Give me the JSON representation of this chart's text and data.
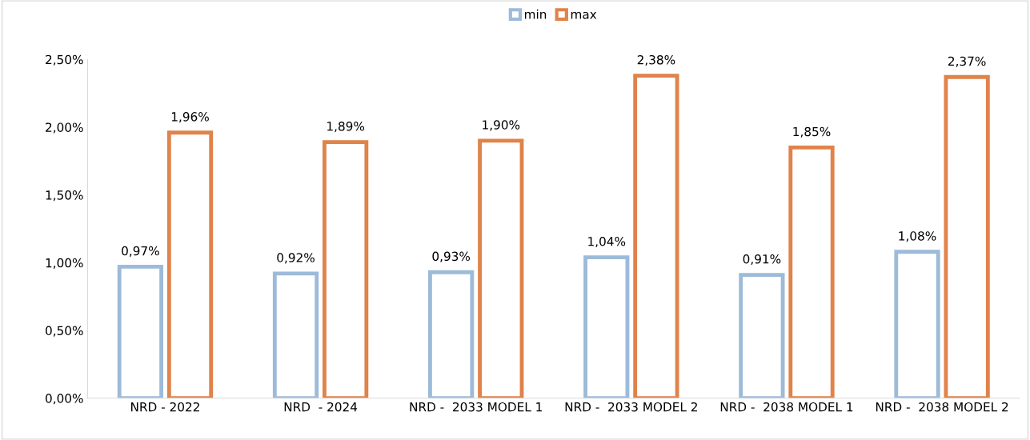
{
  "chart_data": {
    "type": "bar",
    "categories": [
      "NRD - 2022",
      "NRD  - 2024",
      "NRD -  2033 MODEL 1",
      "NRD -  2033 MODEL 2",
      "NRD -  2038 MODEL 1",
      "NRD -  2038 MODEL 2"
    ],
    "series": [
      {
        "name": "min",
        "color": "#9dbbd9",
        "values": [
          0.97,
          0.92,
          0.93,
          1.04,
          0.91,
          1.08
        ],
        "value_labels": [
          "0,97%",
          "0,92%",
          "0,93%",
          "1,04%",
          "0,91%",
          "1,08%"
        ]
      },
      {
        "name": "max",
        "color": "#e0834a",
        "values": [
          1.96,
          1.89,
          1.9,
          2.38,
          1.85,
          2.37
        ],
        "value_labels": [
          "1,96%",
          "1,89%",
          "1,90%",
          "2,38%",
          "1,85%",
          "2,37%"
        ]
      }
    ],
    "ylim": [
      0,
      2.5
    ],
    "yticks": [
      {
        "value": 0,
        "label": "0,00%"
      },
      {
        "value": 0.5,
        "label": "0,50%"
      },
      {
        "value": 1.0,
        "label": "1,00%"
      },
      {
        "value": 1.5,
        "label": "1,50%"
      },
      {
        "value": 2.0,
        "label": "2,00%"
      },
      {
        "value": 2.5,
        "label": "2,50%"
      }
    ],
    "grid": false,
    "legend": "top"
  }
}
